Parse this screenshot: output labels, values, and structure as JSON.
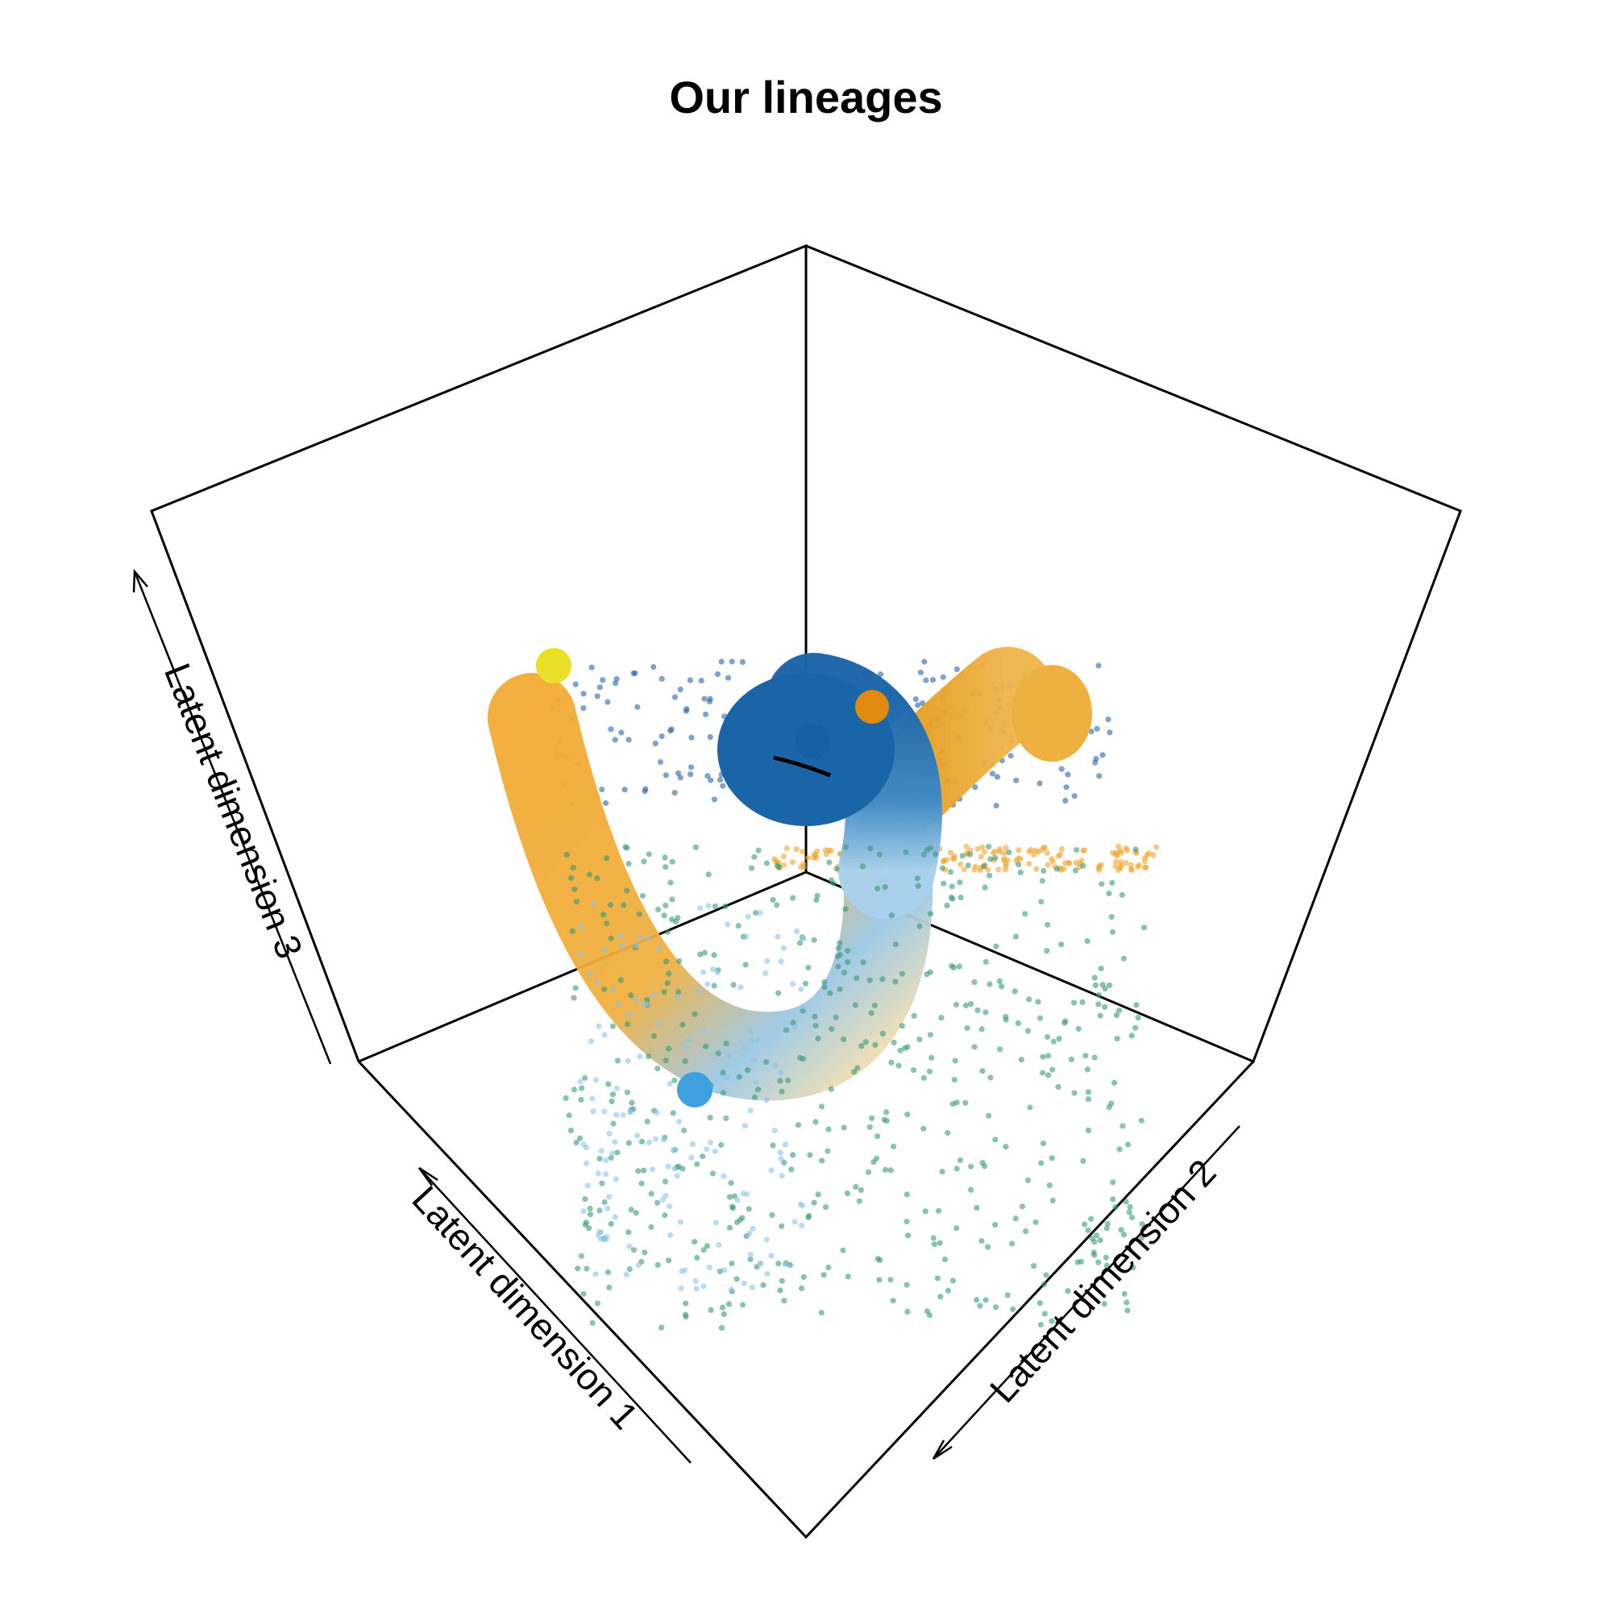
{
  "chart_data": {
    "type": "scatter",
    "projection": "3d-perspective-box",
    "title": "Our lineages",
    "axes": [
      {
        "name": "x",
        "label": "Latent dimension 1"
      },
      {
        "name": "y",
        "label": "Latent dimension 2"
      },
      {
        "name": "z",
        "label": "Latent dimension 3"
      }
    ],
    "grid": false,
    "legend": "none",
    "point_groups": [
      {
        "color": "#2a65a8",
        "count": 220
      },
      {
        "color": "#f0a530",
        "count": 170
      },
      {
        "color": "#3a9a78",
        "count": 560
      },
      {
        "color": "#8ec3ea",
        "count": 160
      }
    ],
    "lineages": [
      {
        "color_start": "#1a6aad",
        "color_end": "#f5d9a0"
      },
      {
        "color_start": "#e8a125",
        "color_end": "#e8a125"
      },
      {
        "color_start": "#f2ab35",
        "color_end": "#f5d9a0"
      }
    ],
    "cluster_centers": [
      {
        "color": "#e8e028"
      },
      {
        "color": "#e08a10"
      },
      {
        "color": "#1560a0"
      },
      {
        "color": "#3fa0e0"
      }
    ]
  }
}
